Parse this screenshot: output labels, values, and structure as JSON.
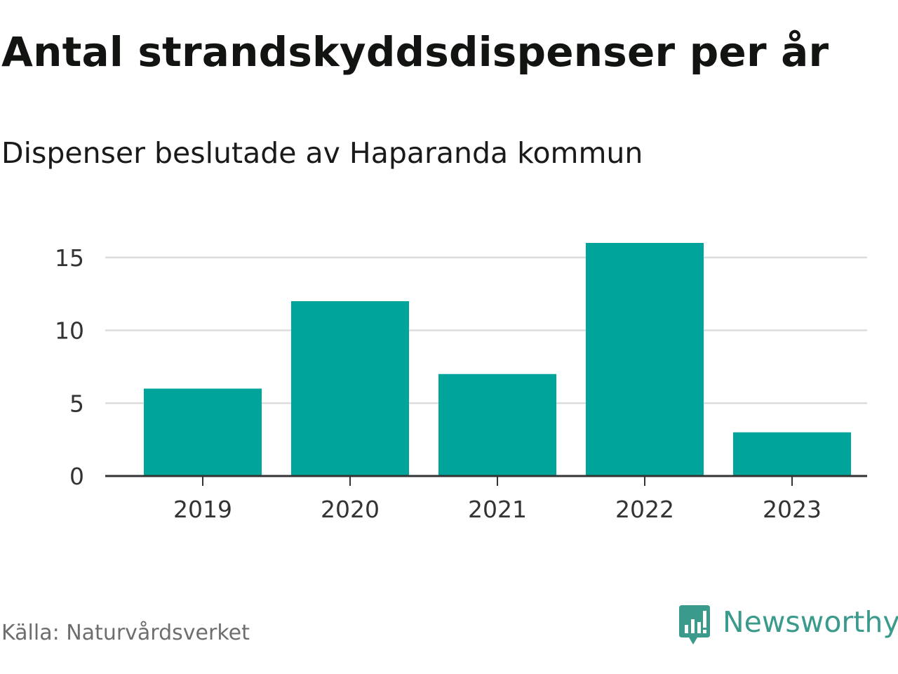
{
  "chart_data": {
    "type": "bar",
    "title": "Antal strandskyddsdispenser per år",
    "subtitle": "Dispenser beslutade av Haparanda kommun",
    "categories": [
      "2019",
      "2020",
      "2021",
      "2022",
      "2023"
    ],
    "values": [
      6,
      12,
      7,
      16,
      3
    ],
    "yticks": [
      0,
      5,
      10,
      15
    ],
    "ylim": [
      0,
      15.6
    ],
    "xlabel": "",
    "ylabel": "",
    "grid": true,
    "bar_color": "#00a49a",
    "source": "Källa: Naturvårdsverket"
  },
  "brand": {
    "name": "Newsworthy",
    "logo_icon": "newsworthy-logo-icon",
    "color": "#3a9a8b"
  }
}
